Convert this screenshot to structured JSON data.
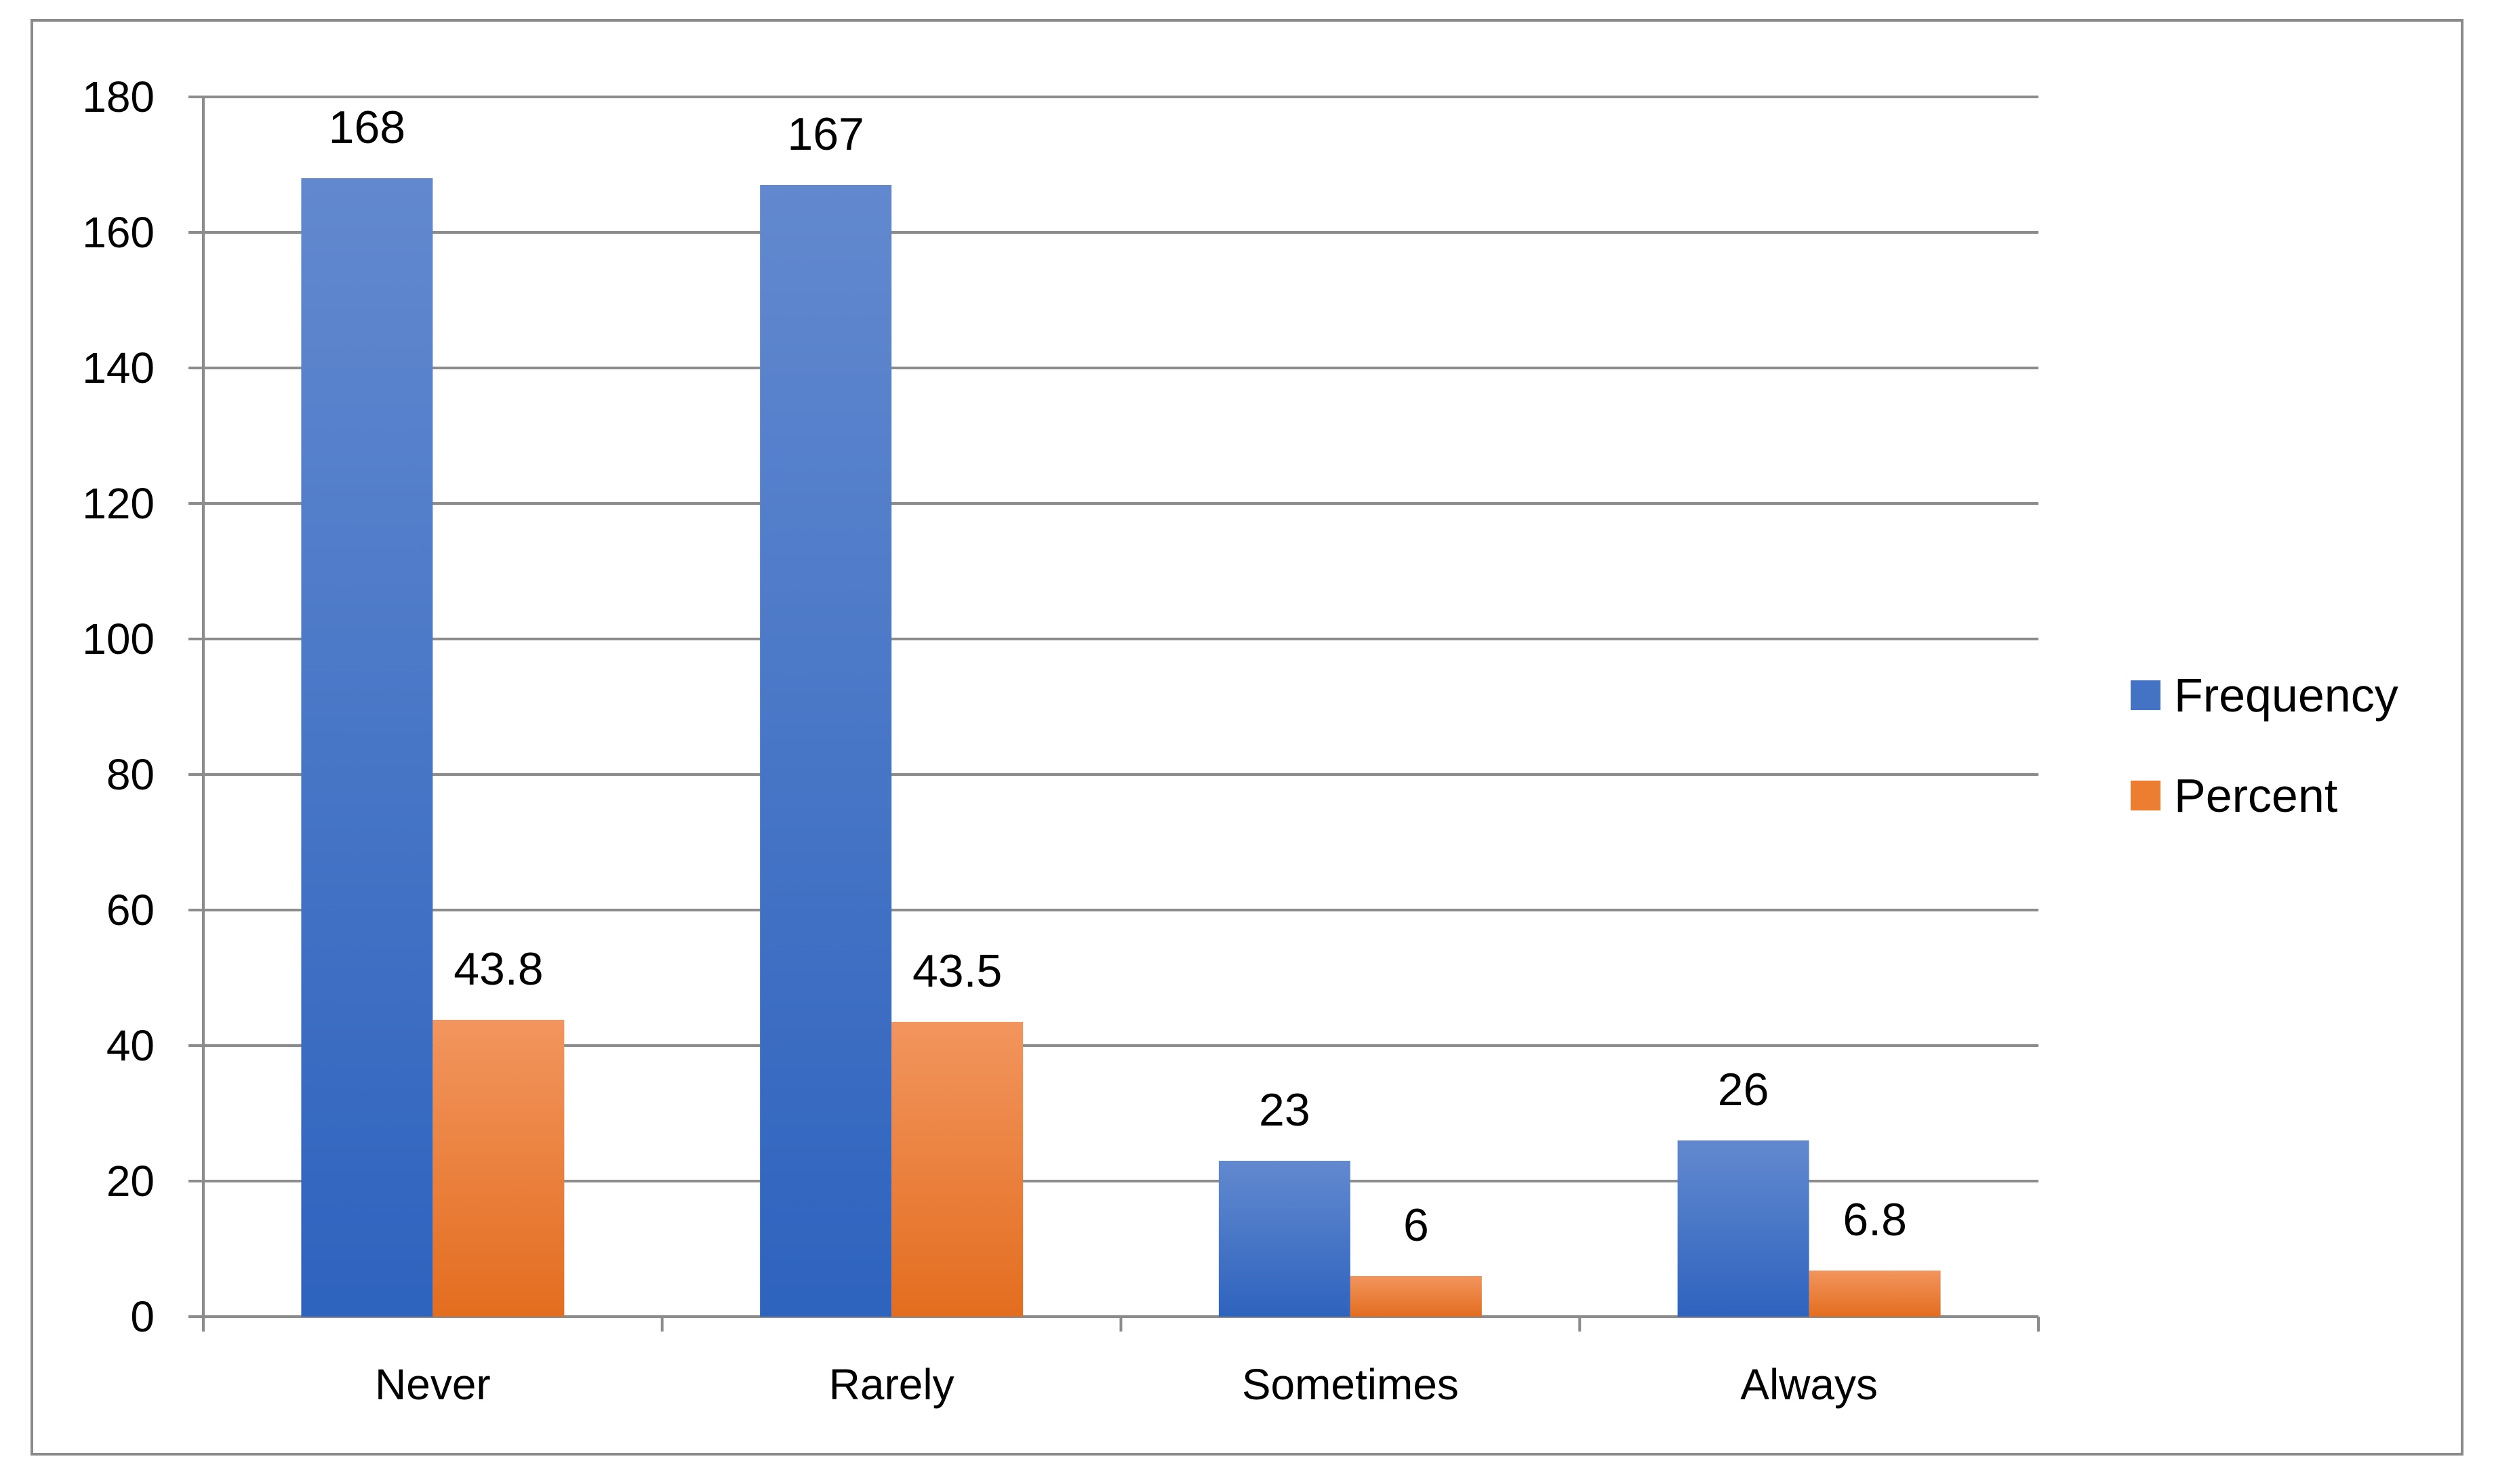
{
  "chart_data": {
    "type": "bar",
    "title": "",
    "xlabel": "",
    "ylabel": "",
    "categories": [
      "Never",
      "Rarely",
      "Sometimes",
      "Always"
    ],
    "series": [
      {
        "name": "Frequency",
        "values": [
          168,
          167,
          23,
          26
        ],
        "value_labels": [
          "168",
          "167",
          "23",
          "26"
        ],
        "color": "#4472C4"
      },
      {
        "name": "Percent",
        "values": [
          43.8,
          43.5,
          6,
          6.8
        ],
        "value_labels": [
          "43.8",
          "43.5",
          "6",
          "6.8"
        ],
        "color": "#ED7D31"
      }
    ],
    "ylim": [
      0,
      180
    ],
    "yticks": [
      0,
      20,
      40,
      60,
      80,
      100,
      120,
      140,
      160,
      180
    ],
    "ytick_labels": [
      "0",
      "20",
      "40",
      "60",
      "80",
      "100",
      "120",
      "140",
      "160",
      "180"
    ],
    "grid": true,
    "legend_position": "right"
  }
}
